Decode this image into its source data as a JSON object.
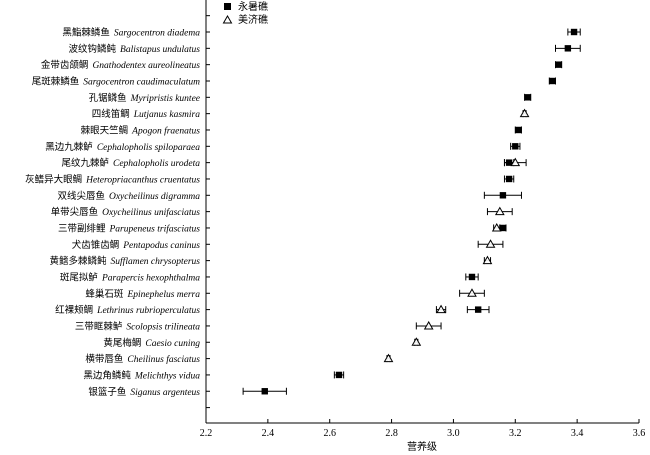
{
  "chart_data": {
    "type": "scatter",
    "subtype": "dot-plot-with-error-bars",
    "orientation": "horizontal",
    "xlabel": "营养级",
    "ylabel": "",
    "xlim": [
      2.2,
      3.6
    ],
    "xticks": [
      "2.2",
      "2.4",
      "2.6",
      "2.8",
      "3.0",
      "3.2",
      "3.4",
      "3.6"
    ],
    "grid": false,
    "legend_position": "top-left",
    "species": [
      {
        "cn": "黑鮨棘鳞鱼",
        "sci": "Sargocentron diadema"
      },
      {
        "cn": "波纹钩鳞鲀",
        "sci": "Balistapus undulatus"
      },
      {
        "cn": "金带齿颌鲷",
        "sci": "Gnathodentex aureolineatus"
      },
      {
        "cn": "尾斑棘鳞鱼",
        "sci": "Sargocentron caudimaculatum"
      },
      {
        "cn": "孔锯鳞鱼",
        "sci": "Myripristis kuntee"
      },
      {
        "cn": "四线笛鲷",
        "sci": "Lutjanus kasmira"
      },
      {
        "cn": "棘眼天竺鲷",
        "sci": "Apogon fraenatus"
      },
      {
        "cn": "黑边九棘鲈",
        "sci": "Cephalopholis spiloparaea"
      },
      {
        "cn": "尾纹九棘鲈",
        "sci": "Cephalopholis urodeta"
      },
      {
        "cn": "灰鳍异大眼鲷",
        "sci": "Heteropriacanthus cruentatus"
      },
      {
        "cn": "双线尖唇鱼",
        "sci": "Oxycheilinus digramma"
      },
      {
        "cn": "单带尖唇鱼",
        "sci": "Oxycheilinus unifasciatus"
      },
      {
        "cn": "三带副绯鲤",
        "sci": "Parupeneus trifasciatus"
      },
      {
        "cn": "犬齿锥齿鲷",
        "sci": "Pentapodus caninus"
      },
      {
        "cn": "黄鳍多棘鳞鲀",
        "sci": "Sufflamen chrysopterus"
      },
      {
        "cn": "斑尾拟鲈",
        "sci": "Parapercis hexophthalma"
      },
      {
        "cn": "蜂巢石斑",
        "sci": "Epinephelus merra"
      },
      {
        "cn": "红裸颊鲷",
        "sci": "Lethrinus rubrioperculatus"
      },
      {
        "cn": "三带眶棘鲈",
        "sci": "Scolopsis trilineata"
      },
      {
        "cn": "黄尾梅鲷",
        "sci": "Caesio cuning"
      },
      {
        "cn": "横带唇鱼",
        "sci": "Cheilinus fasciatus"
      },
      {
        "cn": "黑边角鳞鲀",
        "sci": "Melichthys vidua"
      },
      {
        "cn": "银篮子鱼",
        "sci": "Siganus argenteus"
      }
    ],
    "series": [
      {
        "name": "永暑礁",
        "marker": "filled-square",
        "color": "#000000",
        "values": [
          3.39,
          3.37,
          3.34,
          3.32,
          3.24,
          null,
          3.21,
          3.2,
          3.18,
          3.18,
          3.16,
          null,
          3.16,
          null,
          null,
          3.06,
          null,
          3.08,
          null,
          null,
          null,
          2.63,
          2.39
        ],
        "err": [
          0.02,
          0.04,
          0.01,
          0.01,
          0.01,
          null,
          0.01,
          0.015,
          0.015,
          0.015,
          0.06,
          null,
          0.01,
          null,
          null,
          0.02,
          null,
          0.035,
          null,
          null,
          null,
          0.015,
          0.07
        ]
      },
      {
        "name": "美济礁",
        "marker": "open-triangle",
        "color": "#000000",
        "values": [
          null,
          null,
          null,
          null,
          null,
          3.23,
          null,
          null,
          3.2,
          null,
          null,
          3.15,
          3.14,
          3.12,
          3.11,
          null,
          3.06,
          2.96,
          2.92,
          2.88,
          2.79,
          null,
          null
        ],
        "err": [
          null,
          null,
          null,
          null,
          null,
          0.005,
          null,
          null,
          0.035,
          null,
          null,
          0.04,
          0.01,
          0.04,
          0.01,
          null,
          0.04,
          0.015,
          0.04,
          0.005,
          0.005,
          null,
          null
        ]
      }
    ]
  }
}
